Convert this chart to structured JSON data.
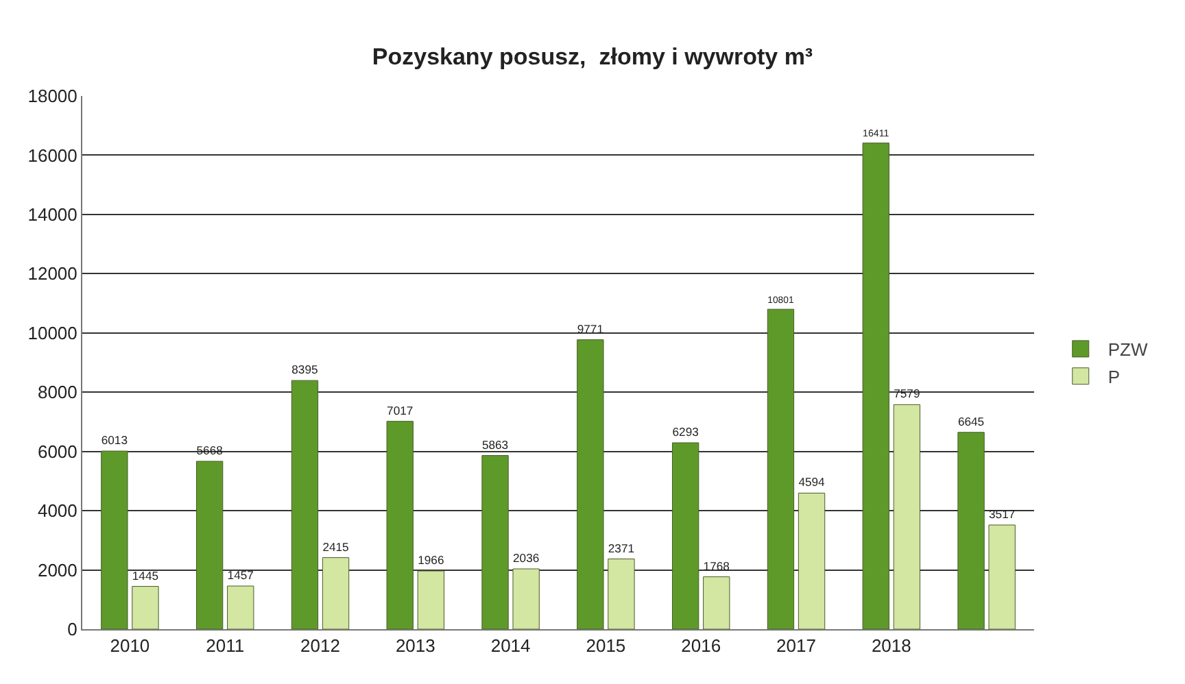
{
  "chart_data": {
    "type": "bar",
    "title": "Pozyskany posusz,  złomy i wywroty m³",
    "categories": [
      "2010",
      "2011",
      "2012",
      "2013",
      "2014",
      "2015",
      "2016",
      "2017",
      "2018",
      null
    ],
    "series": [
      {
        "name": "PZW",
        "color": "#5e9a2a",
        "values": [
          6013,
          5668,
          8395,
          7017,
          5863,
          9771,
          6293,
          10801,
          16411,
          6645
        ]
      },
      {
        "name": "P",
        "color": "#d3e6a2",
        "values": [
          1445,
          1457,
          2415,
          1966,
          2036,
          2371,
          1768,
          4594,
          7579,
          3517
        ]
      }
    ],
    "ylim": [
      0,
      18000
    ],
    "yticks": [
      0,
      2000,
      4000,
      6000,
      8000,
      10000,
      12000,
      14000,
      16000,
      18000
    ],
    "grid": "y",
    "legend": "right",
    "data_labels": true
  }
}
